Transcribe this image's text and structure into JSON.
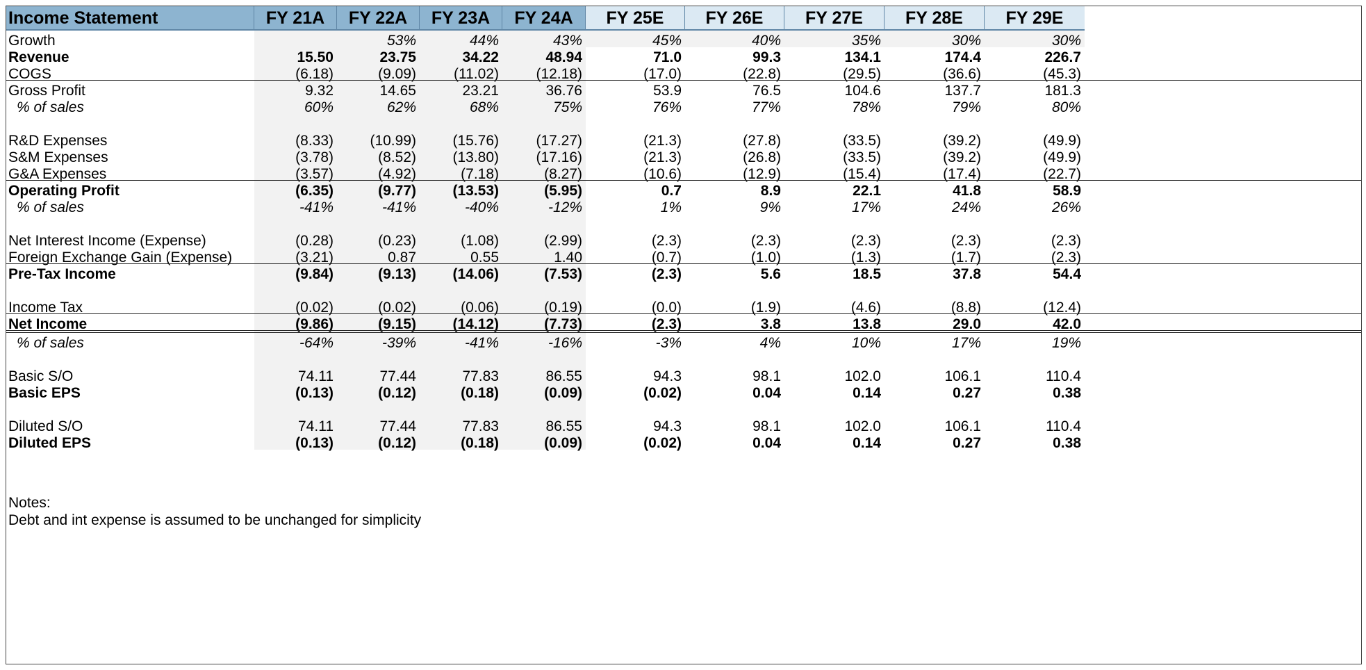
{
  "title": "Income Statement",
  "columns": [
    {
      "label": "FY 21A",
      "type": "actual"
    },
    {
      "label": "FY 22A",
      "type": "actual"
    },
    {
      "label": "FY 23A",
      "type": "actual"
    },
    {
      "label": "FY 24A",
      "type": "actual"
    },
    {
      "label": "FY 25E",
      "type": "estimate"
    },
    {
      "label": "FY 26E",
      "type": "estimate"
    },
    {
      "label": "FY 27E",
      "type": "estimate"
    },
    {
      "label": "FY 28E",
      "type": "estimate"
    },
    {
      "label": "FY 29E",
      "type": "estimate"
    }
  ],
  "colors": {
    "header_actual": "#8db4d0",
    "header_estimate": "#dbe9f3",
    "historical_fill": "#f2f2f2",
    "growth_fill": "#f2f2f2"
  },
  "rows": [
    {
      "label": "Growth",
      "style": "normal",
      "values": [
        "",
        "53%",
        "44%",
        "43%",
        "45%",
        "40%",
        "35%",
        "30%",
        "30%"
      ],
      "italic_values": true
    },
    {
      "label": "Revenue",
      "style": "bold",
      "values": [
        "15.50",
        "23.75",
        "34.22",
        "48.94",
        "71.0",
        "99.3",
        "134.1",
        "174.4",
        "226.7"
      ]
    },
    {
      "label": "COGS",
      "style": "normal",
      "values": [
        "(6.18)",
        "(9.09)",
        "(11.02)",
        "(12.18)",
        "(17.0)",
        "(22.8)",
        "(29.5)",
        "(36.6)",
        "(45.3)"
      ],
      "rule_below": true
    },
    {
      "label": "Gross Profit",
      "style": "normal",
      "values": [
        "9.32",
        "14.65",
        "23.21",
        "36.76",
        "53.9",
        "76.5",
        "104.6",
        "137.7",
        "181.3"
      ]
    },
    {
      "label": "% of sales",
      "style": "italic-indent",
      "values": [
        "60%",
        "62%",
        "68%",
        "75%",
        "76%",
        "77%",
        "78%",
        "79%",
        "80%"
      ]
    },
    {
      "label": "",
      "style": "blank",
      "values": []
    },
    {
      "label": "R&D Expenses",
      "style": "normal",
      "values": [
        "(8.33)",
        "(10.99)",
        "(15.76)",
        "(17.27)",
        "(21.3)",
        "(27.8)",
        "(33.5)",
        "(39.2)",
        "(49.9)"
      ]
    },
    {
      "label": "S&M Expenses",
      "style": "normal",
      "values": [
        "(3.78)",
        "(8.52)",
        "(13.80)",
        "(17.16)",
        "(21.3)",
        "(26.8)",
        "(33.5)",
        "(39.2)",
        "(49.9)"
      ]
    },
    {
      "label": "G&A Expenses",
      "style": "normal",
      "values": [
        "(3.57)",
        "(4.92)",
        "(7.18)",
        "(8.27)",
        "(10.6)",
        "(12.9)",
        "(15.4)",
        "(17.4)",
        "(22.7)"
      ],
      "rule_below": true
    },
    {
      "label": "Operating Profit",
      "style": "bold",
      "values": [
        "(6.35)",
        "(9.77)",
        "(13.53)",
        "(5.95)",
        "0.7",
        "8.9",
        "22.1",
        "41.8",
        "58.9"
      ]
    },
    {
      "label": "% of sales",
      "style": "italic-indent",
      "values": [
        "-41%",
        "-41%",
        "-40%",
        "-12%",
        "1%",
        "9%",
        "17%",
        "24%",
        "26%"
      ]
    },
    {
      "label": "",
      "style": "blank",
      "values": []
    },
    {
      "label": "Net Interest Income (Expense)",
      "style": "normal",
      "values": [
        "(0.28)",
        "(0.23)",
        "(1.08)",
        "(2.99)",
        "(2.3)",
        "(2.3)",
        "(2.3)",
        "(2.3)",
        "(2.3)"
      ]
    },
    {
      "label": "Foreign Exchange Gain (Expense)",
      "style": "normal",
      "values": [
        "(3.21)",
        "0.87",
        "0.55",
        "1.40",
        "(0.7)",
        "(1.0)",
        "(1.3)",
        "(1.7)",
        "(2.3)"
      ],
      "rule_below": true
    },
    {
      "label": "Pre-Tax Income",
      "style": "bold",
      "values": [
        "(9.84)",
        "(9.13)",
        "(14.06)",
        "(7.53)",
        "(2.3)",
        "5.6",
        "18.5",
        "37.8",
        "54.4"
      ]
    },
    {
      "label": "",
      "style": "blank",
      "values": []
    },
    {
      "label": "Income Tax",
      "style": "normal",
      "values": [
        "(0.02)",
        "(0.02)",
        "(0.06)",
        "(0.19)",
        "(0.0)",
        "(1.9)",
        "(4.6)",
        "(8.8)",
        "(12.4)"
      ],
      "rule_below": true
    },
    {
      "label": "Net Income",
      "style": "bold",
      "values": [
        "(9.86)",
        "(9.15)",
        "(14.12)",
        "(7.73)",
        "(2.3)",
        "3.8",
        "13.8",
        "29.0",
        "42.0"
      ],
      "double_below": true
    },
    {
      "label": "% of sales",
      "style": "italic-indent",
      "values": [
        "-64%",
        "-39%",
        "-41%",
        "-16%",
        "-3%",
        "4%",
        "10%",
        "17%",
        "19%"
      ]
    },
    {
      "label": "",
      "style": "blank",
      "values": []
    },
    {
      "label": "Basic S/O",
      "style": "normal",
      "values": [
        "74.11",
        "77.44",
        "77.83",
        "86.55",
        "94.3",
        "98.1",
        "102.0",
        "106.1",
        "110.4"
      ]
    },
    {
      "label": "Basic EPS",
      "style": "bold",
      "values": [
        "(0.13)",
        "(0.12)",
        "(0.18)",
        "(0.09)",
        "(0.02)",
        "0.04",
        "0.14",
        "0.27",
        "0.38"
      ]
    },
    {
      "label": "",
      "style": "blank",
      "values": []
    },
    {
      "label": "Diluted S/O",
      "style": "normal",
      "values": [
        "74.11",
        "77.44",
        "77.83",
        "86.55",
        "94.3",
        "98.1",
        "102.0",
        "106.1",
        "110.4"
      ]
    },
    {
      "label": "Diluted EPS",
      "style": "bold",
      "values": [
        "(0.13)",
        "(0.12)",
        "(0.18)",
        "(0.09)",
        "(0.02)",
        "0.04",
        "0.14",
        "0.27",
        "0.38"
      ]
    }
  ],
  "notes": {
    "heading": "Notes:",
    "lines": [
      "Debt and int expense is assumed to be unchanged for simplicity"
    ]
  }
}
